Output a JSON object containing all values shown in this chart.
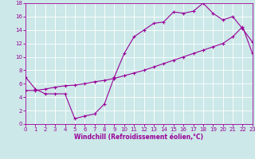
{
  "xlabel": "Windchill (Refroidissement éolien,°C)",
  "xlim": [
    0,
    23
  ],
  "ylim": [
    0,
    18
  ],
  "xticks": [
    0,
    1,
    2,
    3,
    4,
    5,
    6,
    7,
    8,
    9,
    10,
    11,
    12,
    13,
    14,
    15,
    16,
    17,
    18,
    19,
    20,
    21,
    22,
    23
  ],
  "yticks": [
    0,
    2,
    4,
    6,
    8,
    10,
    12,
    14,
    16,
    18
  ],
  "bg_color": "#cce8e8",
  "line_color": "#990099",
  "grid_color": "#ffffff",
  "curve1_x": [
    0,
    1,
    2,
    3,
    4,
    5,
    6,
    7,
    8,
    9,
    10,
    11,
    12,
    13,
    14,
    15,
    16,
    17,
    18,
    19,
    20,
    21,
    22,
    23
  ],
  "curve1_y": [
    7.0,
    5.2,
    4.5,
    4.5,
    4.5,
    0.8,
    1.2,
    1.5,
    3.0,
    7.0,
    10.5,
    13.0,
    14.0,
    15.0,
    15.2,
    16.7,
    16.5,
    16.8,
    18.0,
    16.5,
    15.5,
    16.0,
    14.2,
    12.2
  ],
  "curve2_x": [
    0,
    1,
    2,
    3,
    4,
    5,
    6,
    7,
    8,
    9,
    10,
    11,
    12,
    13,
    14,
    15,
    16,
    17,
    18,
    19,
    20,
    21,
    22,
    23
  ],
  "curve2_y": [
    5.0,
    5.0,
    5.2,
    5.5,
    5.7,
    5.8,
    6.0,
    6.3,
    6.5,
    6.8,
    7.2,
    7.6,
    8.0,
    8.5,
    9.0,
    9.5,
    10.0,
    10.5,
    11.0,
    11.5,
    12.0,
    13.0,
    14.5,
    10.5
  ],
  "xlabel_fontsize": 5.5,
  "tick_fontsize": 5.0,
  "linewidth": 0.8,
  "markersize": 3,
  "markeredgewidth": 0.8
}
